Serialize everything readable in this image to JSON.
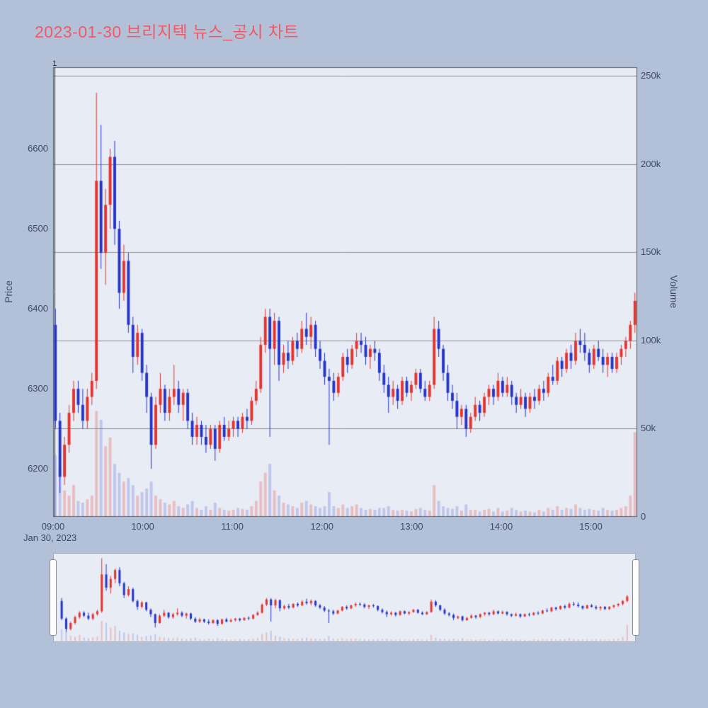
{
  "title": {
    "text": "2023-01-30 브리지텍 뉴스_공시 차트",
    "color": "#ee5a68"
  },
  "date_label": "Jan 30, 2023",
  "marker": {
    "label": "1",
    "time": "09:01"
  },
  "colors": {
    "page_bg": "#b3c1d8",
    "plot_bg": "#e8ecf4",
    "up": "#e3342f",
    "down": "#2435c8",
    "vol_up": "rgba(230,70,62,0.28)",
    "vol_down": "rgba(70,85,210,0.25)",
    "grid": "#909298",
    "border": "#55565c",
    "marker_line": "#1c2636",
    "tick_text": "#3d4a63"
  },
  "axes": {
    "price": {
      "title": "Price",
      "range": [
        6140,
        6702
      ],
      "ticks": [
        6200,
        6300,
        6400,
        6500,
        6600
      ]
    },
    "volume": {
      "title": "Volume",
      "range": [
        0,
        255000
      ],
      "ticks": [
        {
          "v": 0,
          "label": "0"
        },
        {
          "v": 50000,
          "label": "50k"
        },
        {
          "v": 100000,
          "label": "100k"
        },
        {
          "v": 150000,
          "label": "150k"
        },
        {
          "v": 200000,
          "label": "200k"
        },
        {
          "v": 250000,
          "label": "250k"
        }
      ]
    },
    "time": {
      "range": [
        "09:00",
        "15:31"
      ],
      "ticks": [
        "09:00",
        "10:00",
        "11:00",
        "12:00",
        "13:00",
        "14:00",
        "15:00"
      ]
    }
  },
  "chart_data": {
    "type": "candlestick",
    "title": "2023-01-30 브리지텍 뉴스_공시 차트",
    "ylabel": "Price",
    "y2label": "Volume",
    "x_range": [
      "09:00",
      "15:31"
    ],
    "price_range": [
      6140,
      6702
    ],
    "volume_range": [
      0,
      255000
    ],
    "grid": true,
    "legend": false,
    "rangeslider": true,
    "columns": [
      "time",
      "open",
      "high",
      "low",
      "close",
      "volume"
    ],
    "candles": [
      [
        "09:00",
        6380,
        6400,
        6250,
        6260,
        35000
      ],
      [
        "09:03",
        6260,
        6270,
        6170,
        6190,
        28000
      ],
      [
        "09:06",
        6190,
        6240,
        6180,
        6230,
        15000
      ],
      [
        "09:09",
        6230,
        6280,
        6220,
        6270,
        12000
      ],
      [
        "09:12",
        6270,
        6310,
        6260,
        6300,
        18000
      ],
      [
        "09:15",
        6300,
        6310,
        6270,
        6280,
        9000
      ],
      [
        "09:18",
        6280,
        6300,
        6250,
        6260,
        8000
      ],
      [
        "09:21",
        6260,
        6300,
        6250,
        6290,
        10000
      ],
      [
        "09:24",
        6290,
        6320,
        6280,
        6310,
        12000
      ],
      [
        "09:27",
        6310,
        6670,
        6300,
        6560,
        60000
      ],
      [
        "09:30",
        6560,
        6630,
        6450,
        6470,
        55000
      ],
      [
        "09:33",
        6470,
        6550,
        6430,
        6530,
        40000
      ],
      [
        "09:36",
        6530,
        6600,
        6500,
        6590,
        45000
      ],
      [
        "09:39",
        6590,
        6610,
        6480,
        6500,
        30000
      ],
      [
        "09:42",
        6500,
        6510,
        6400,
        6420,
        25000
      ],
      [
        "09:45",
        6420,
        6480,
        6410,
        6460,
        20000
      ],
      [
        "09:48",
        6460,
        6470,
        6370,
        6380,
        22000
      ],
      [
        "09:51",
        6380,
        6390,
        6320,
        6340,
        18000
      ],
      [
        "09:54",
        6340,
        6380,
        6330,
        6370,
        12000
      ],
      [
        "09:57",
        6370,
        6375,
        6310,
        6320,
        14000
      ],
      [
        "10:00",
        6320,
        6330,
        6270,
        6290,
        16000
      ],
      [
        "10:03",
        6290,
        6295,
        6200,
        6230,
        20000
      ],
      [
        "10:06",
        6230,
        6290,
        6225,
        6280,
        12000
      ],
      [
        "10:09",
        6280,
        6320,
        6270,
        6300,
        10000
      ],
      [
        "10:12",
        6300,
        6305,
        6260,
        6270,
        8000
      ],
      [
        "10:15",
        6270,
        6300,
        6260,
        6290,
        7000
      ],
      [
        "10:18",
        6290,
        6330,
        6280,
        6300,
        9000
      ],
      [
        "10:21",
        6300,
        6310,
        6270,
        6280,
        6000
      ],
      [
        "10:24",
        6280,
        6300,
        6260,
        6295,
        5000
      ],
      [
        "10:27",
        6295,
        6300,
        6250,
        6260,
        7000
      ],
      [
        "10:30",
        6260,
        6270,
        6230,
        6240,
        9000
      ],
      [
        "10:33",
        6240,
        6265,
        6230,
        6255,
        5000
      ],
      [
        "10:36",
        6255,
        6260,
        6230,
        6240,
        4000
      ],
      [
        "10:39",
        6240,
        6255,
        6220,
        6230,
        6000
      ],
      [
        "10:42",
        6230,
        6255,
        6225,
        6250,
        4000
      ],
      [
        "10:45",
        6250,
        6255,
        6210,
        6225,
        8000
      ],
      [
        "10:48",
        6225,
        6260,
        6220,
        6255,
        5000
      ],
      [
        "10:51",
        6255,
        6265,
        6235,
        6240,
        4000
      ],
      [
        "10:54",
        6240,
        6260,
        6235,
        6250,
        3500
      ],
      [
        "10:57",
        6250,
        6265,
        6240,
        6260,
        4000
      ],
      [
        "11:00",
        6260,
        6265,
        6240,
        6250,
        5000
      ],
      [
        "11:03",
        6250,
        6270,
        6245,
        6265,
        4500
      ],
      [
        "11:06",
        6265,
        6275,
        6250,
        6260,
        4000
      ],
      [
        "11:09",
        6260,
        6290,
        6255,
        6285,
        6000
      ],
      [
        "11:12",
        6285,
        6310,
        6280,
        6300,
        9000
      ],
      [
        "11:15",
        6300,
        6365,
        6295,
        6355,
        20000
      ],
      [
        "11:18",
        6355,
        6400,
        6345,
        6390,
        25000
      ],
      [
        "11:21",
        6390,
        6400,
        6240,
        6350,
        30000
      ],
      [
        "11:24",
        6350,
        6395,
        6330,
        6385,
        15000
      ],
      [
        "11:27",
        6385,
        6390,
        6310,
        6330,
        12000
      ],
      [
        "11:30",
        6330,
        6355,
        6320,
        6345,
        8000
      ],
      [
        "11:33",
        6345,
        6360,
        6325,
        6335,
        7000
      ],
      [
        "11:36",
        6335,
        6365,
        6330,
        6360,
        6000
      ],
      [
        "11:39",
        6360,
        6370,
        6340,
        6350,
        5000
      ],
      [
        "11:42",
        6350,
        6385,
        6345,
        6375,
        8000
      ],
      [
        "11:45",
        6375,
        6395,
        6355,
        6365,
        9000
      ],
      [
        "11:48",
        6365,
        6390,
        6350,
        6380,
        7000
      ],
      [
        "11:51",
        6380,
        6385,
        6340,
        6350,
        6000
      ],
      [
        "11:54",
        6350,
        6360,
        6325,
        6335,
        5000
      ],
      [
        "11:57",
        6335,
        6345,
        6305,
        6315,
        6000
      ],
      [
        "12:00",
        6315,
        6325,
        6230,
        6310,
        14000
      ],
      [
        "12:03",
        6310,
        6320,
        6285,
        6295,
        6000
      ],
      [
        "12:06",
        6295,
        6320,
        6290,
        6315,
        5000
      ],
      [
        "12:09",
        6315,
        6345,
        6310,
        6340,
        7000
      ],
      [
        "12:12",
        6340,
        6350,
        6320,
        6330,
        5000
      ],
      [
        "12:15",
        6330,
        6355,
        6325,
        6350,
        6000
      ],
      [
        "12:18",
        6350,
        6370,
        6340,
        6360,
        7000
      ],
      [
        "12:21",
        6360,
        6370,
        6345,
        6355,
        5000
      ],
      [
        "12:24",
        6355,
        6365,
        6330,
        6340,
        4000
      ],
      [
        "12:27",
        6340,
        6355,
        6325,
        6350,
        4500
      ],
      [
        "12:30",
        6350,
        6360,
        6335,
        6345,
        4000
      ],
      [
        "12:33",
        6345,
        6350,
        6310,
        6320,
        5000
      ],
      [
        "12:36",
        6320,
        6330,
        6295,
        6305,
        5000
      ],
      [
        "12:39",
        6305,
        6315,
        6270,
        6290,
        6000
      ],
      [
        "12:42",
        6290,
        6310,
        6280,
        6300,
        4000
      ],
      [
        "12:45",
        6300,
        6305,
        6275,
        6285,
        3500
      ],
      [
        "12:48",
        6285,
        6315,
        6280,
        6310,
        4000
      ],
      [
        "12:51",
        6310,
        6315,
        6290,
        6295,
        3500
      ],
      [
        "12:54",
        6295,
        6310,
        6285,
        6305,
        3000
      ],
      [
        "12:57",
        6305,
        6325,
        6300,
        6320,
        4500
      ],
      [
        "13:00",
        6320,
        6325,
        6295,
        6300,
        5000
      ],
      [
        "13:03",
        6300,
        6310,
        6285,
        6290,
        4000
      ],
      [
        "13:06",
        6290,
        6310,
        6285,
        6305,
        3500
      ],
      [
        "13:09",
        6305,
        6390,
        6300,
        6375,
        18000
      ],
      [
        "13:12",
        6375,
        6385,
        6340,
        6350,
        9000
      ],
      [
        "13:15",
        6350,
        6355,
        6310,
        6320,
        6000
      ],
      [
        "13:18",
        6320,
        6330,
        6285,
        6295,
        5000
      ],
      [
        "13:21",
        6295,
        6305,
        6275,
        6285,
        4500
      ],
      [
        "13:24",
        6285,
        6295,
        6250,
        6265,
        6000
      ],
      [
        "13:27",
        6265,
        6280,
        6255,
        6275,
        3500
      ],
      [
        "13:30",
        6275,
        6280,
        6240,
        6250,
        7000
      ],
      [
        "13:33",
        6250,
        6270,
        6245,
        6265,
        4000
      ],
      [
        "13:36",
        6265,
        6290,
        6260,
        6280,
        4000
      ],
      [
        "13:39",
        6280,
        6285,
        6260,
        6270,
        3000
      ],
      [
        "13:42",
        6270,
        6295,
        6265,
        6290,
        4000
      ],
      [
        "13:45",
        6290,
        6305,
        6280,
        6300,
        4500
      ],
      [
        "13:48",
        6300,
        6305,
        6280,
        6290,
        3000
      ],
      [
        "13:51",
        6290,
        6320,
        6285,
        6310,
        5000
      ],
      [
        "13:54",
        6310,
        6315,
        6290,
        6295,
        3000
      ],
      [
        "13:57",
        6295,
        6315,
        6290,
        6305,
        3500
      ],
      [
        "14:00",
        6305,
        6310,
        6280,
        6290,
        5000
      ],
      [
        "14:03",
        6290,
        6295,
        6270,
        6280,
        4000
      ],
      [
        "14:06",
        6280,
        6300,
        6275,
        6290,
        3000
      ],
      [
        "14:09",
        6290,
        6295,
        6265,
        6275,
        3500
      ],
      [
        "14:12",
        6275,
        6295,
        6270,
        6290,
        3000
      ],
      [
        "14:15",
        6290,
        6300,
        6275,
        6285,
        2500
      ],
      [
        "14:18",
        6285,
        6305,
        6280,
        6300,
        4000
      ],
      [
        "14:21",
        6300,
        6310,
        6285,
        6295,
        3000
      ],
      [
        "14:24",
        6295,
        6320,
        6290,
        6315,
        5000
      ],
      [
        "14:27",
        6315,
        6330,
        6305,
        6310,
        4000
      ],
      [
        "14:30",
        6310,
        6340,
        6305,
        6335,
        6000
      ],
      [
        "14:33",
        6335,
        6340,
        6315,
        6325,
        4000
      ],
      [
        "14:36",
        6325,
        6350,
        6320,
        6345,
        5000
      ],
      [
        "14:39",
        6345,
        6355,
        6325,
        6335,
        4500
      ],
      [
        "14:42",
        6335,
        6370,
        6330,
        6360,
        7000
      ],
      [
        "14:45",
        6360,
        6375,
        6345,
        6355,
        5000
      ],
      [
        "14:48",
        6355,
        6370,
        6335,
        6345,
        4000
      ],
      [
        "14:51",
        6345,
        6350,
        6320,
        6330,
        4500
      ],
      [
        "14:54",
        6330,
        6355,
        6325,
        6350,
        4000
      ],
      [
        "14:57",
        6350,
        6360,
        6335,
        6340,
        3500
      ],
      [
        "15:00",
        6340,
        6350,
        6320,
        6330,
        5000
      ],
      [
        "15:03",
        6330,
        6345,
        6315,
        6340,
        4000
      ],
      [
        "15:06",
        6340,
        6345,
        6320,
        6325,
        3500
      ],
      [
        "15:09",
        6325,
        6345,
        6320,
        6340,
        4000
      ],
      [
        "15:12",
        6340,
        6355,
        6330,
        6350,
        5000
      ],
      [
        "15:15",
        6350,
        6365,
        6340,
        6360,
        6000
      ],
      [
        "15:18",
        6360,
        6385,
        6350,
        6380,
        12000
      ],
      [
        "15:21",
        6380,
        6420,
        6370,
        6410,
        48000
      ]
    ]
  }
}
